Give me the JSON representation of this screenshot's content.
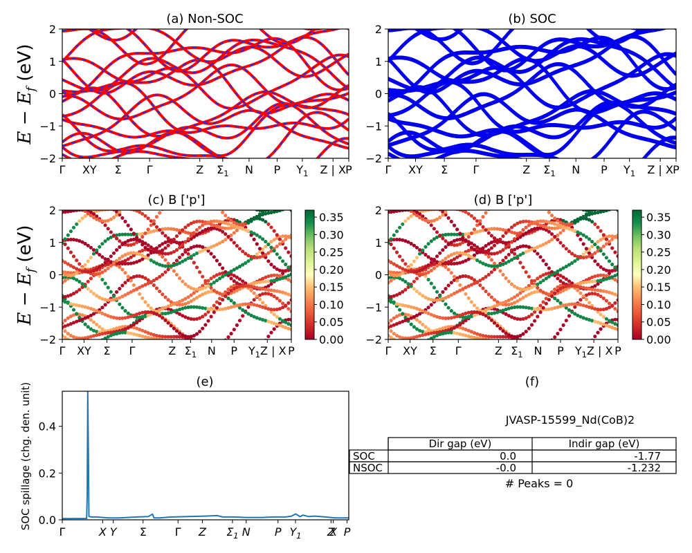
{
  "symbols": {
    "E": "E",
    "f": "f",
    "Ef_unit": " (eV)"
  },
  "panels": {
    "a": {
      "title": "(a) Non-SOC"
    },
    "b": {
      "title": "(b) SOC"
    },
    "c": {
      "title": "(c)  B ['p']"
    },
    "d": {
      "title": "(d) B ['p']"
    },
    "e": {
      "title": "(e)",
      "ylabel": "SOC spillage (chg. den. unit)"
    },
    "f": {
      "title": "(f)"
    }
  },
  "kpath_top": [
    "Γ",
    "XY",
    "Σ",
    "Γ",
    "Z",
    "Σ1",
    "N",
    "P",
    "Y1",
    "Z | X",
    "P"
  ],
  "kpath_mid": [
    "Γ",
    "XY",
    "Σ",
    "Γ",
    "Z",
    "Σ1",
    "N",
    "P",
    "Y1Z | X",
    "P"
  ],
  "kpath_spill": [
    "Γ",
    "X",
    "Y",
    "Σ",
    "Γ",
    "Z",
    "Σ1",
    "N",
    "P",
    "Y1",
    "Z",
    "X",
    "P"
  ],
  "colorbar": {
    "ticks": [
      "0.00",
      "0.05",
      "0.10",
      "0.15",
      "0.20",
      "0.25",
      "0.30",
      "0.35"
    ],
    "range": [
      0,
      0.37
    ]
  },
  "colors": {
    "nonsoc_band": "#ff0000",
    "nonsoc_dash": "#2b2bd8",
    "soc_band": "#0000ee",
    "spillage_line": "#1f77b4"
  },
  "table": {
    "material": "JVASP-15599_Nd(CoB)2",
    "headers": [
      "Dir gap (eV)",
      "Indir gap (eV)"
    ],
    "rows": [
      {
        "label": "SOC",
        "dir": "0.0",
        "indir": "-1.77"
      },
      {
        "label": "NSOC",
        "dir": "-0.0",
        "indir": "-1.232"
      }
    ],
    "peaks": "# Peaks = 0"
  },
  "chart_data": [
    {
      "type": "line",
      "panel": "a",
      "title": "(a) Non-SOC",
      "ylabel": "E − E_f (eV)",
      "ylim": [
        -2,
        2
      ],
      "yticks": [
        -2,
        -1,
        0,
        1,
        2
      ],
      "x_ticks": [
        "Γ",
        "XY",
        "Σ",
        "Γ",
        "Z",
        "Σ1",
        "N",
        "P",
        "Y1",
        "Z | X",
        "P"
      ]
    },
    {
      "type": "line",
      "panel": "b",
      "title": "(b) SOC",
      "ylim": [
        -2,
        2
      ],
      "yticks": [
        -2,
        -1,
        0,
        1,
        2
      ]
    },
    {
      "type": "scatter",
      "panel": "c",
      "title": "(c)  B ['p']",
      "ylabel": "E − E_f (eV)",
      "ylim": [
        -2,
        2
      ],
      "colorbar_range": [
        0,
        0.37
      ]
    },
    {
      "type": "scatter",
      "panel": "d",
      "title": "(d) B ['p']",
      "ylim": [
        -2,
        2
      ],
      "colorbar_range": [
        0,
        0.37
      ]
    },
    {
      "type": "line",
      "panel": "e",
      "title": "(e)",
      "ylabel": "SOC spillage (chg. den. unit)",
      "ylim": [
        0,
        0.55
      ],
      "yticks": [
        0.0,
        0.2,
        0.4
      ],
      "x": [
        0,
        0.085,
        0.087,
        0.089,
        0.091,
        0.093,
        0.1,
        0.12,
        0.16,
        0.2,
        0.26,
        0.3,
        0.315,
        0.32,
        0.34,
        0.38,
        0.44,
        0.5,
        0.54,
        0.56,
        0.6,
        0.64,
        0.7,
        0.74,
        0.78,
        0.8,
        0.815,
        0.83,
        0.84,
        0.86,
        0.88,
        0.9,
        0.92,
        0.95,
        0.98,
        1.0
      ],
      "y": [
        0.005,
        0.006,
        0.1,
        0.55,
        0.3,
        0.015,
        0.012,
        0.012,
        0.008,
        0.008,
        0.012,
        0.014,
        0.024,
        0.008,
        0.008,
        0.012,
        0.014,
        0.016,
        0.018,
        0.012,
        0.012,
        0.01,
        0.01,
        0.012,
        0.012,
        0.016,
        0.025,
        0.014,
        0.02,
        0.014,
        0.016,
        0.014,
        0.012,
        0.008,
        0.008,
        0.008
      ]
    }
  ]
}
